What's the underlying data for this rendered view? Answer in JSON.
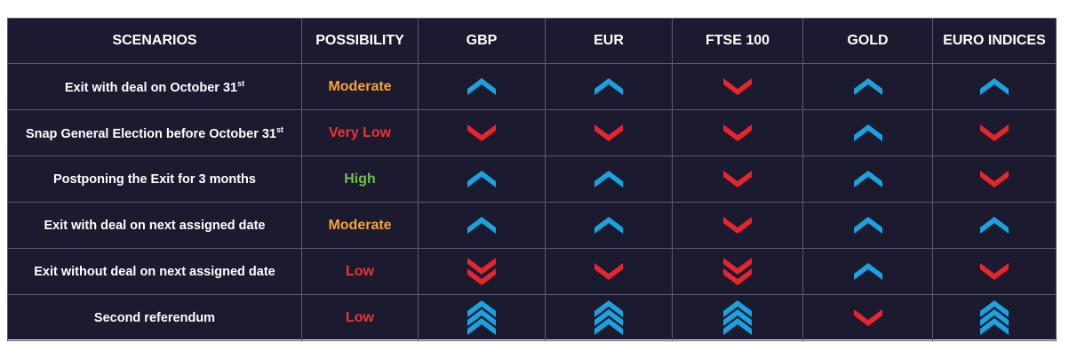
{
  "table": {
    "headers": [
      "SCENARIOS",
      "POSSIBILITY",
      "GBP",
      "EUR",
      "FTSE 100",
      "GOLD",
      "EURO INDICES"
    ],
    "rows": [
      {
        "scenario": "Exit with deal on October 31",
        "scenario_sup": "st",
        "possibility": "Moderate",
        "possibility_color": "#f6a33a",
        "signals": [
          "up",
          "up",
          "down",
          "up",
          "up"
        ]
      },
      {
        "scenario": "Snap General Election before October 31",
        "scenario_sup": "st",
        "possibility": "Very Low",
        "possibility_color": "#ee3333",
        "signals": [
          "down",
          "down",
          "down",
          "up",
          "down"
        ]
      },
      {
        "scenario": "Postponing the Exit for 3 months",
        "scenario_sup": "",
        "possibility": "High",
        "possibility_color": "#6cc04a",
        "signals": [
          "up",
          "up",
          "down",
          "up",
          "down"
        ]
      },
      {
        "scenario": "Exit with deal on next assigned date",
        "scenario_sup": "",
        "possibility": "Moderate",
        "possibility_color": "#f6a33a",
        "signals": [
          "up",
          "up",
          "down",
          "up",
          "up"
        ]
      },
      {
        "scenario": "Exit without deal on next assigned date",
        "scenario_sup": "",
        "possibility": "Low",
        "possibility_color": "#ee3333",
        "signals": [
          "double-down",
          "down",
          "double-down",
          "up",
          "down"
        ]
      },
      {
        "scenario": "Second referendum",
        "scenario_sup": "",
        "possibility": "Low",
        "possibility_color": "#ee3333",
        "signals": [
          "triple-up",
          "triple-up",
          "triple-up",
          "down",
          "triple-up"
        ]
      }
    ]
  },
  "colors": {
    "background": "#1b1a2e",
    "up_arrow": "#1aa3e0",
    "down_arrow": "#e8252e",
    "grid": "#5a5a72"
  },
  "icons": {
    "up": "chevron-up-icon",
    "down": "chevron-down-icon",
    "double-down": "double-chevron-down-icon",
    "triple-up": "triple-chevron-up-icon"
  }
}
